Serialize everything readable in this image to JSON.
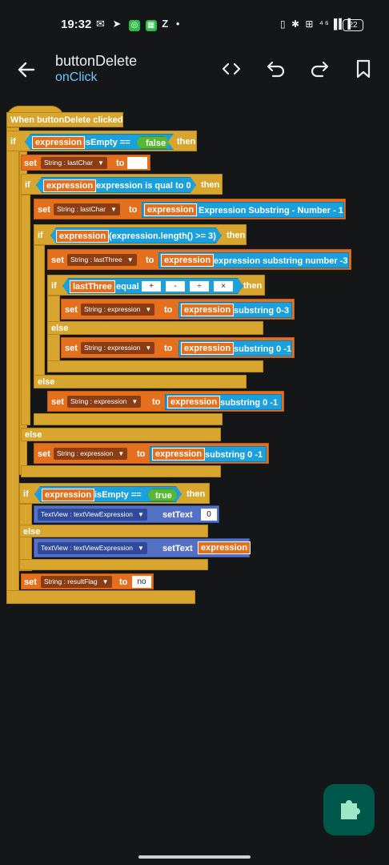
{
  "status": {
    "time": "19:32",
    "left_icons": "✉ ➤",
    "battery": "22"
  },
  "appbar": {
    "title": "buttonDelete",
    "subtitle": "onClick"
  },
  "blocks": {
    "event": "When buttonDelete clicked",
    "kw_if": "if",
    "kw_then": "then",
    "kw_else": "else",
    "kw_set": "set",
    "kw_to": "to",
    "var_expression": "expression",
    "is_empty": "isEmpty ==",
    "val_false": "false",
    "val_true": "true",
    "chip_lastchar": "String : lastChar",
    "chip_lastthree": "String : lastThree",
    "chip_expression": "String : expression",
    "chip_resultflag": "String : resultFlag",
    "chip_textview": "TextView : textViewExpression",
    "eq_zero": "expression is qual to 0",
    "expr_sub_num1": "Expression Substring - Number - 1",
    "length_check": "(expression.length() >= 3)",
    "expr_sub_num3": "expression substring number -3",
    "var_lastthree": "lastThree",
    "equal": "equal",
    "ops": [
      "+",
      "-",
      "÷",
      "×"
    ],
    "sub_0_3": "substring 0-3",
    "sub_0_1": "substring 0 -1",
    "set_text": "setText",
    "lit_zero": "0",
    "lit_no": "no"
  }
}
